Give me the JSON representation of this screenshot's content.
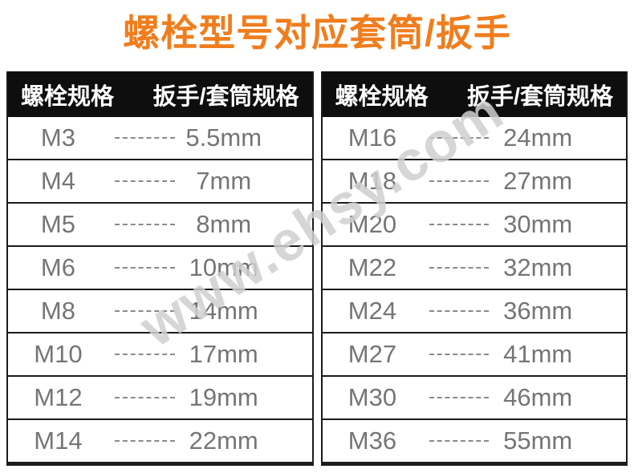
{
  "title": "螺栓型号对应套筒/扳手",
  "watermark": "www.ehsy.com",
  "colors": {
    "title": "#f07d1d",
    "header_bg": "#0e0e0e",
    "header_text": "#ffffff",
    "row_text": "#757575",
    "border": "#1b1b1b",
    "dash": "#8a8a8a",
    "watermark": "#cfcfcf",
    "background": "#ffffff"
  },
  "tables": [
    {
      "headers": {
        "bolt": "螺栓规格",
        "wrench": "扳手/套筒规格"
      },
      "rows": [
        {
          "bolt": "M3",
          "size": "5.5mm"
        },
        {
          "bolt": "M4",
          "size": "7mm"
        },
        {
          "bolt": "M5",
          "size": "8mm"
        },
        {
          "bolt": "M6",
          "size": "10mm"
        },
        {
          "bolt": "M8",
          "size": "14mm"
        },
        {
          "bolt": "M10",
          "size": "17mm"
        },
        {
          "bolt": "M12",
          "size": "19mm"
        },
        {
          "bolt": "M14",
          "size": "22mm"
        }
      ]
    },
    {
      "headers": {
        "bolt": "螺栓规格",
        "wrench": "扳手/套筒规格"
      },
      "rows": [
        {
          "bolt": "M16",
          "size": "24mm"
        },
        {
          "bolt": "M18",
          "size": "27mm"
        },
        {
          "bolt": "M20",
          "size": "30mm"
        },
        {
          "bolt": "M22",
          "size": "32mm"
        },
        {
          "bolt": "M24",
          "size": "36mm"
        },
        {
          "bolt": "M27",
          "size": "41mm"
        },
        {
          "bolt": "M30",
          "size": "46mm"
        },
        {
          "bolt": "M36",
          "size": "55mm"
        }
      ]
    }
  ]
}
